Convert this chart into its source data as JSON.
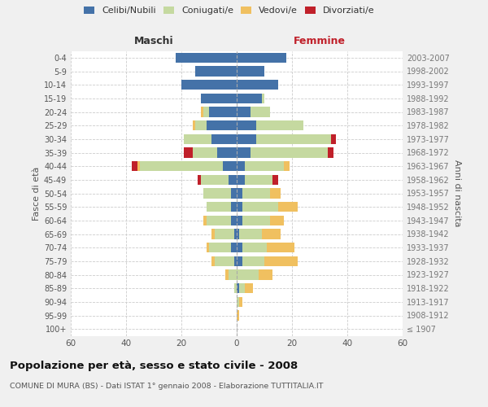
{
  "age_groups": [
    "100+",
    "95-99",
    "90-94",
    "85-89",
    "80-84",
    "75-79",
    "70-74",
    "65-69",
    "60-64",
    "55-59",
    "50-54",
    "45-49",
    "40-44",
    "35-39",
    "30-34",
    "25-29",
    "20-24",
    "15-19",
    "10-14",
    "5-9",
    "0-4"
  ],
  "birth_years": [
    "≤ 1907",
    "1908-1912",
    "1913-1917",
    "1918-1922",
    "1923-1927",
    "1928-1932",
    "1933-1937",
    "1938-1942",
    "1943-1947",
    "1948-1952",
    "1953-1957",
    "1958-1962",
    "1963-1967",
    "1968-1972",
    "1973-1977",
    "1978-1982",
    "1983-1987",
    "1988-1992",
    "1993-1997",
    "1998-2002",
    "2003-2007"
  ],
  "colors": {
    "celibi": "#4472a8",
    "coniugati": "#c5d9a0",
    "vedovi": "#f0c060",
    "divorziati": "#c0202a"
  },
  "maschi": {
    "celibi": [
      0,
      0,
      0,
      0,
      0,
      1,
      2,
      1,
      2,
      2,
      2,
      3,
      5,
      7,
      9,
      11,
      10,
      13,
      20,
      15,
      22
    ],
    "coniugati": [
      0,
      0,
      0,
      1,
      3,
      7,
      8,
      7,
      9,
      9,
      10,
      10,
      30,
      9,
      10,
      4,
      2,
      0,
      0,
      0,
      0
    ],
    "vedovi": [
      0,
      0,
      0,
      0,
      1,
      1,
      1,
      1,
      1,
      0,
      0,
      0,
      1,
      0,
      0,
      1,
      1,
      0,
      0,
      0,
      0
    ],
    "divorziati": [
      0,
      0,
      0,
      0,
      0,
      0,
      0,
      0,
      0,
      0,
      0,
      1,
      2,
      3,
      0,
      0,
      0,
      0,
      0,
      0,
      0
    ]
  },
  "femmine": {
    "celibi": [
      0,
      0,
      0,
      1,
      0,
      2,
      2,
      1,
      2,
      2,
      2,
      3,
      3,
      5,
      7,
      7,
      5,
      9,
      15,
      10,
      18
    ],
    "coniugati": [
      0,
      0,
      1,
      2,
      8,
      8,
      9,
      8,
      10,
      13,
      10,
      10,
      14,
      28,
      27,
      17,
      7,
      1,
      0,
      0,
      0
    ],
    "vedovi": [
      0,
      1,
      1,
      3,
      5,
      12,
      10,
      7,
      5,
      7,
      4,
      0,
      2,
      0,
      0,
      0,
      0,
      0,
      0,
      0,
      0
    ],
    "divorziati": [
      0,
      0,
      0,
      0,
      0,
      0,
      0,
      0,
      0,
      0,
      0,
      2,
      0,
      2,
      2,
      0,
      0,
      0,
      0,
      0,
      0
    ]
  },
  "xlim": 60,
  "title": "Popolazione per età, sesso e stato civile - 2008",
  "subtitle": "COMUNE DI MURA (BS) - Dati ISTAT 1° gennaio 2008 - Elaborazione TUTTITALIA.IT",
  "xlabel_left": "Maschi",
  "xlabel_right": "Femmine",
  "ylabel_left": "Fasce di età",
  "ylabel_right": "Anni di nascita",
  "legend_labels": [
    "Celibi/Nubili",
    "Coniugati/e",
    "Vedovi/e",
    "Divorziati/e"
  ],
  "bg_color": "#f0f0f0",
  "plot_bg_color": "#ffffff",
  "grid_color": "#cccccc"
}
